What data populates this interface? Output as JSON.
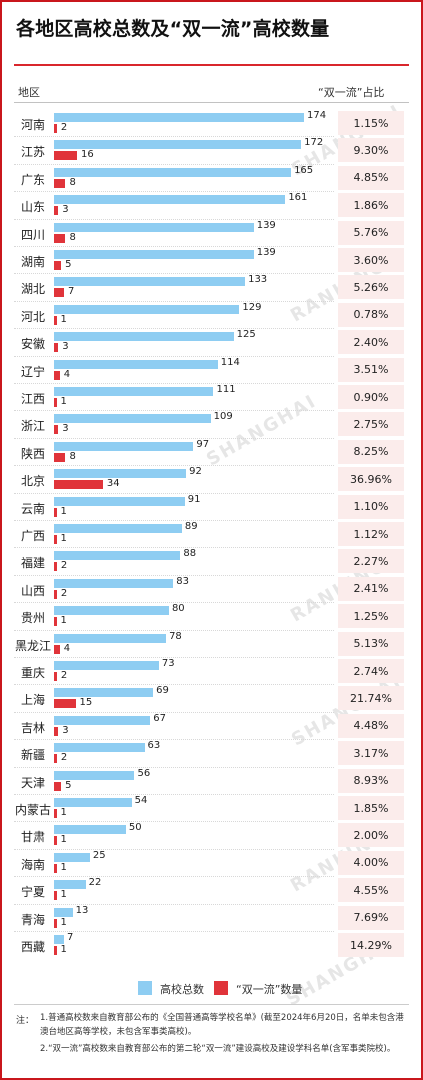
{
  "title": "各地区高校总数及“双一流”高校数量",
  "header": {
    "region_label": "地区",
    "ratio_label": "“双一流”占比"
  },
  "legend": {
    "total_label": "高校总数",
    "dfc_label": "“双一流”数量"
  },
  "colors": {
    "total": "#8ecdf2",
    "dfc": "#e0343a",
    "accent": "#c9161c",
    "ratio_bg": "#fbeceb"
  },
  "notes": {
    "label": "注：",
    "note1": "1.普通高校数来自教育部公布的《全国普通高等学校名单》(截至2024年6月20日，名单未包含港澳台地区高等学校，未包含军事类高校)。",
    "note2": "2.“双一流”高校数来自教育部公布的第二轮“双一流”建设高校及建设学科名单(含军事类院校)。"
  },
  "watermark": [
    "SHANGHAI",
    "RANKING"
  ],
  "chart_data": {
    "type": "bar",
    "orientation": "horizontal",
    "categories": [
      "河南",
      "江苏",
      "广东",
      "山东",
      "四川",
      "湖南",
      "湖北",
      "河北",
      "安徽",
      "辽宁",
      "江西",
      "浙江",
      "陕西",
      "北京",
      "云南",
      "广西",
      "福建",
      "山西",
      "贵州",
      "黑龙江",
      "重庆",
      "上海",
      "吉林",
      "新疆",
      "天津",
      "内蒙古",
      "甘肃",
      "海南",
      "宁夏",
      "青海",
      "西藏"
    ],
    "series": [
      {
        "name": "高校总数",
        "values": [
          174,
          172,
          165,
          161,
          139,
          139,
          133,
          129,
          125,
          114,
          111,
          109,
          97,
          92,
          91,
          89,
          88,
          83,
          80,
          78,
          73,
          69,
          67,
          63,
          56,
          54,
          50,
          25,
          22,
          13,
          7
        ]
      },
      {
        "name": "“双一流”数量",
        "values": [
          2,
          16,
          8,
          3,
          8,
          5,
          7,
          1,
          3,
          4,
          1,
          3,
          8,
          34,
          1,
          1,
          2,
          2,
          1,
          4,
          2,
          15,
          3,
          2,
          5,
          1,
          1,
          1,
          1,
          1,
          1
        ]
      }
    ],
    "ratio_labels": [
      "1.15%",
      "9.30%",
      "4.85%",
      "1.86%",
      "5.76%",
      "3.60%",
      "5.26%",
      "0.78%",
      "2.40%",
      "3.51%",
      "0.90%",
      "2.75%",
      "8.25%",
      "36.96%",
      "1.10%",
      "1.12%",
      "2.27%",
      "2.41%",
      "1.25%",
      "5.13%",
      "2.74%",
      "21.74%",
      "4.48%",
      "3.17%",
      "8.93%",
      "1.85%",
      "2.00%",
      "4.00%",
      "4.55%",
      "7.69%",
      "14.29%"
    ],
    "legend": "bottom",
    "grid": false
  }
}
